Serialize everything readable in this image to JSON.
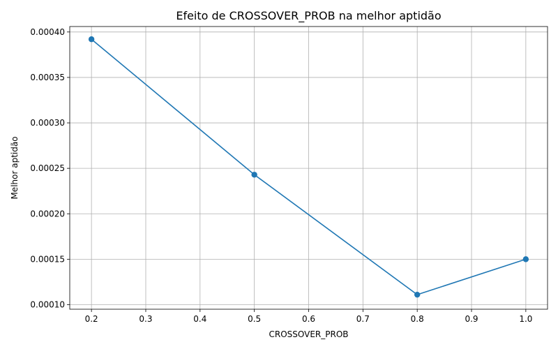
{
  "chart_data": {
    "type": "line",
    "title": "Efeito de CROSSOVER_PROB na melhor aptidão",
    "xlabel": "CROSSOVER_PROB",
    "ylabel": "Melhor aptidão",
    "xlim": [
      0.16,
      1.04
    ],
    "ylim": [
      9.5e-05,
      0.000406
    ],
    "x_ticks": [
      0.2,
      0.3,
      0.4,
      0.5,
      0.6,
      0.7,
      0.8,
      0.9,
      1.0
    ],
    "x_tick_labels": [
      "0.2",
      "0.3",
      "0.4",
      "0.5",
      "0.6",
      "0.7",
      "0.8",
      "0.9",
      "1.0"
    ],
    "y_ticks": [
      0.0001,
      0.00015,
      0.0002,
      0.00025,
      0.0003,
      0.00035,
      0.0004
    ],
    "y_tick_labels": [
      "0.00010",
      "0.00015",
      "0.00020",
      "0.00025",
      "0.00030",
      "0.00035",
      "0.00040"
    ],
    "grid": true,
    "series": [
      {
        "color": "#1f77b4",
        "marker": "circle",
        "x": [
          0.2,
          0.5,
          0.8,
          1.0
        ],
        "y": [
          0.000392,
          0.000243,
          0.000111,
          0.00015
        ]
      }
    ]
  }
}
